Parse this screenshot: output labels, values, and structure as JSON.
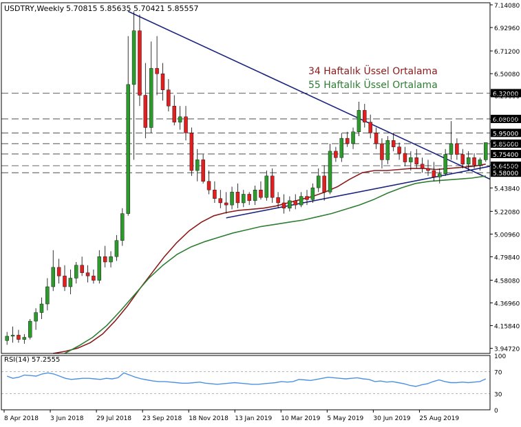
{
  "header": {
    "symbol": "USDTRY,Weekly",
    "ohlc": "5.70815 5.85635 5.70421 5.85557"
  },
  "annotations": {
    "ema34_label": "34 Haftalık Üssel Ortalama",
    "ema55_label": "55 Haftalık Üssel Ortalama"
  },
  "rsi_panel": {
    "label": "RSI(14) 57.2555",
    "ticks": [
      "100",
      "70",
      "30",
      "0"
    ]
  },
  "colors": {
    "bull": "#2e9a2e",
    "bear": "#e02020",
    "ema34": "#8b1a1a",
    "ema55": "#2e7d32",
    "trend": "#1a237e",
    "rsi": "#4a90e2"
  },
  "chart_data": {
    "type": "candlestick",
    "xlabels": [
      "8 Apr 2018",
      "3 Jun 2018",
      "29 Jul 2018",
      "23 Sep 2018",
      "18 Nov 2018",
      "13 Jan 2019",
      "10 Mar 2019",
      "5 May 2019",
      "30 Jun 2019",
      "25 Aug 2019"
    ],
    "yticks": [
      "7.14080",
      "6.92960",
      "6.71200",
      "6.50080",
      "6.29600",
      "6.07840",
      "5.86720",
      "5.64960",
      "5.43840",
      "5.22080",
      "5.00960",
      "4.79840",
      "4.58080",
      "4.36960",
      "4.15840",
      "3.94720"
    ],
    "ylim": [
      3.9,
      7.16
    ],
    "level_labels": [
      "6.32000",
      "6.08000",
      "5.95000",
      "5.85000",
      "5.75400",
      "5.64500",
      "5.58000"
    ],
    "levels": [
      6.32,
      6.08,
      5.95,
      5.85,
      5.754,
      5.645,
      5.58
    ],
    "candles": [
      [
        4.02,
        4.1,
        3.98,
        4.06
      ],
      [
        4.06,
        4.15,
        4.0,
        4.07
      ],
      [
        4.07,
        4.12,
        4.0,
        4.03
      ],
      [
        4.03,
        4.08,
        3.99,
        4.05
      ],
      [
        4.05,
        4.22,
        4.03,
        4.2
      ],
      [
        4.2,
        4.32,
        4.12,
        4.28
      ],
      [
        4.28,
        4.42,
        4.22,
        4.36
      ],
      [
        4.36,
        4.6,
        4.3,
        4.52
      ],
      [
        4.52,
        4.86,
        4.48,
        4.7
      ],
      [
        4.7,
        4.78,
        4.55,
        4.62
      ],
      [
        4.62,
        4.72,
        4.48,
        4.52
      ],
      [
        4.52,
        4.68,
        4.45,
        4.6
      ],
      [
        4.6,
        4.75,
        4.55,
        4.72
      ],
      [
        4.72,
        4.8,
        4.62,
        4.65
      ],
      [
        4.65,
        4.72,
        4.56,
        4.62
      ],
      [
        4.62,
        4.68,
        4.55,
        4.58
      ],
      [
        4.58,
        4.86,
        4.55,
        4.8
      ],
      [
        4.8,
        4.9,
        4.7,
        4.75
      ],
      [
        4.75,
        4.85,
        4.7,
        4.8
      ],
      [
        4.8,
        5.0,
        4.76,
        4.95
      ],
      [
        4.95,
        5.25,
        4.9,
        5.2
      ],
      [
        5.2,
        6.85,
        5.18,
        6.4
      ],
      [
        6.4,
        7.08,
        5.7,
        6.9
      ],
      [
        6.9,
        7.05,
        6.2,
        6.3
      ],
      [
        6.3,
        6.6,
        5.9,
        6.0
      ],
      [
        6.0,
        6.8,
        5.95,
        6.55
      ],
      [
        6.55,
        6.85,
        6.3,
        6.5
      ],
      [
        6.5,
        6.6,
        6.25,
        6.35
      ],
      [
        6.35,
        6.45,
        6.15,
        6.2
      ],
      [
        6.2,
        6.3,
        6.02,
        6.05
      ],
      [
        6.05,
        6.2,
        5.98,
        6.1
      ],
      [
        6.1,
        6.2,
        5.88,
        5.95
      ],
      [
        5.95,
        6.0,
        5.55,
        5.6
      ],
      [
        5.6,
        5.8,
        5.5,
        5.7
      ],
      [
        5.7,
        5.75,
        5.48,
        5.5
      ],
      [
        5.5,
        5.6,
        5.38,
        5.42
      ],
      [
        5.42,
        5.5,
        5.3,
        5.34
      ],
      [
        5.34,
        5.42,
        5.25,
        5.3
      ],
      [
        5.3,
        5.4,
        5.2,
        5.28
      ],
      [
        5.28,
        5.45,
        5.24,
        5.4
      ],
      [
        5.4,
        5.48,
        5.25,
        5.3
      ],
      [
        5.3,
        5.42,
        5.26,
        5.38
      ],
      [
        5.38,
        5.4,
        5.28,
        5.32
      ],
      [
        5.32,
        5.46,
        5.28,
        5.42
      ],
      [
        5.42,
        5.5,
        5.33,
        5.35
      ],
      [
        5.35,
        5.6,
        5.32,
        5.55
      ],
      [
        5.55,
        5.62,
        5.3,
        5.35
      ],
      [
        5.35,
        5.4,
        5.25,
        5.3
      ],
      [
        5.3,
        5.38,
        5.2,
        5.25
      ],
      [
        5.25,
        5.36,
        5.22,
        5.32
      ],
      [
        5.32,
        5.38,
        5.24,
        5.28
      ],
      [
        5.28,
        5.4,
        5.26,
        5.36
      ],
      [
        5.36,
        5.42,
        5.28,
        5.33
      ],
      [
        5.33,
        5.48,
        5.3,
        5.44
      ],
      [
        5.44,
        5.62,
        5.4,
        5.55
      ],
      [
        5.55,
        5.65,
        5.32,
        5.4
      ],
      [
        5.4,
        5.85,
        5.38,
        5.78
      ],
      [
        5.78,
        5.82,
        5.68,
        5.72
      ],
      [
        5.72,
        5.95,
        5.68,
        5.9
      ],
      [
        5.9,
        5.96,
        5.82,
        5.85
      ],
      [
        5.85,
        6.0,
        5.8,
        5.96
      ],
      [
        5.96,
        6.24,
        5.92,
        6.16
      ],
      [
        6.16,
        6.22,
        6.0,
        6.05
      ],
      [
        6.05,
        6.12,
        5.9,
        5.95
      ],
      [
        5.95,
        6.0,
        5.8,
        5.85
      ],
      [
        5.85,
        5.9,
        5.62,
        5.7
      ],
      [
        5.7,
        5.92,
        5.66,
        5.88
      ],
      [
        5.88,
        5.95,
        5.78,
        5.82
      ],
      [
        5.82,
        5.86,
        5.7,
        5.76
      ],
      [
        5.76,
        5.82,
        5.64,
        5.68
      ],
      [
        5.68,
        5.78,
        5.6,
        5.72
      ],
      [
        5.72,
        5.8,
        5.62,
        5.66
      ],
      [
        5.66,
        5.72,
        5.58,
        5.62
      ],
      [
        5.62,
        5.7,
        5.55,
        5.6
      ],
      [
        5.6,
        5.68,
        5.5,
        5.54
      ],
      [
        5.54,
        5.62,
        5.48,
        5.57
      ],
      [
        5.57,
        5.8,
        5.55,
        5.75
      ],
      [
        5.75,
        6.06,
        5.7,
        5.85
      ],
      [
        5.85,
        5.9,
        5.7,
        5.75
      ],
      [
        5.75,
        5.8,
        5.62,
        5.66
      ],
      [
        5.66,
        5.78,
        5.6,
        5.72
      ],
      [
        5.72,
        5.76,
        5.62,
        5.65
      ],
      [
        5.65,
        5.72,
        5.6,
        5.7
      ],
      [
        5.7,
        5.86,
        5.68,
        5.86
      ]
    ],
    "ema34": [
      3.9,
      3.92,
      3.95,
      4.0,
      4.08,
      4.2,
      4.34,
      4.5,
      4.65,
      4.8,
      4.93,
      5.04,
      5.12,
      5.18,
      5.21,
      5.23,
      5.24,
      5.25,
      5.27,
      5.3,
      5.33,
      5.36,
      5.4,
      5.45,
      5.52,
      5.58,
      5.6,
      5.6,
      5.61,
      5.62,
      5.62,
      5.61,
      5.62,
      5.63,
      5.64,
      5.66
    ],
    "ema55": [
      3.9,
      3.97,
      4.05,
      4.16,
      4.3,
      4.45,
      4.6,
      4.72,
      4.82,
      4.89,
      4.94,
      4.98,
      5.02,
      5.05,
      5.08,
      5.1,
      5.12,
      5.14,
      5.17,
      5.2,
      5.24,
      5.28,
      5.33,
      5.39,
      5.44,
      5.48,
      5.5,
      5.51,
      5.52,
      5.53,
      5.55
    ],
    "rsi": [
      62,
      58,
      60,
      64,
      63,
      62,
      66,
      68,
      66,
      62,
      58,
      56,
      57,
      58,
      58,
      57,
      56,
      58,
      57,
      59,
      68,
      64,
      60,
      57,
      55,
      53,
      52,
      52,
      51,
      50,
      49,
      49,
      50,
      51,
      49,
      48,
      47,
      48,
      49,
      50,
      49,
      48,
      47,
      47,
      48,
      49,
      50,
      52,
      51,
      52,
      56,
      55,
      54,
      56,
      58,
      60,
      59,
      58,
      57,
      58,
      59,
      57,
      56,
      52,
      53,
      51,
      52,
      50,
      48,
      45,
      43,
      46,
      48,
      52,
      55,
      52,
      50,
      50,
      51,
      50,
      51,
      52,
      57
    ]
  }
}
